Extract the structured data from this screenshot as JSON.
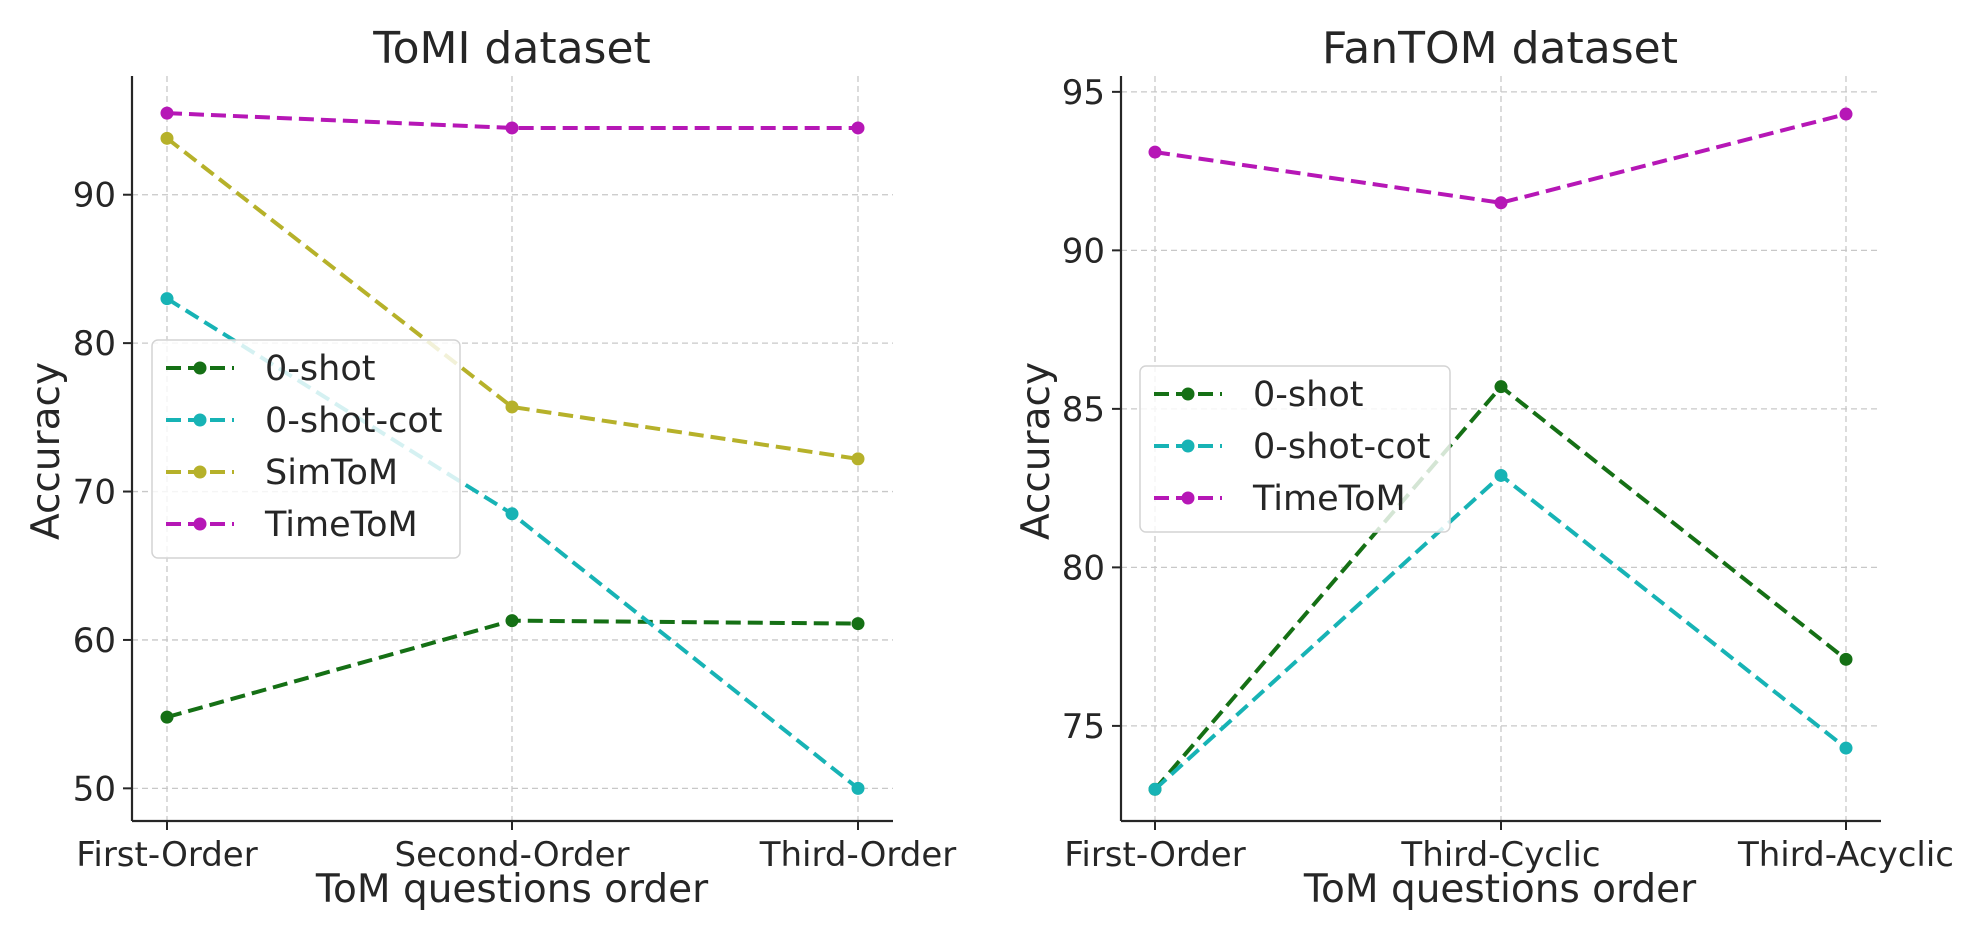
{
  "chart_data": [
    {
      "type": "line",
      "title": "ToMI dataset",
      "xlabel": "ToM questions order",
      "ylabel": "Accuracy",
      "categories": [
        "First-Order",
        "Second-Order",
        "Third-Order"
      ],
      "ylim": [
        47.8,
        98.0
      ],
      "yticks": [
        50,
        60,
        70,
        80,
        90
      ],
      "grid": true,
      "legend_position": "center-left",
      "series": [
        {
          "name": "0-shot",
          "color": "#157015",
          "values": [
            54.8,
            61.3,
            61.1
          ]
        },
        {
          "name": "0-shot-cot",
          "color": "#17b3b5",
          "values": [
            83.0,
            68.5,
            50.0
          ]
        },
        {
          "name": "SimToM",
          "color": "#b6b12a",
          "values": [
            93.8,
            75.7,
            72.2
          ]
        },
        {
          "name": "TimeToM",
          "color": "#b617b6",
          "values": [
            95.5,
            94.5,
            94.5
          ]
        }
      ]
    },
    {
      "type": "line",
      "title": "FanTOM dataset",
      "xlabel": "ToM questions order",
      "ylabel": "Accuracy",
      "categories": [
        "First-Order",
        "Third-Cyclic",
        "Third-Acyclic"
      ],
      "ylim": [
        72.0,
        95.5
      ],
      "yticks": [
        75,
        80,
        85,
        90,
        95
      ],
      "grid": true,
      "legend_position": "center-left",
      "series": [
        {
          "name": "0-shot",
          "color": "#157015",
          "values": [
            73.0,
            85.7,
            77.1
          ]
        },
        {
          "name": "0-shot-cot",
          "color": "#17b3b5",
          "values": [
            73.0,
            82.9,
            74.3
          ]
        },
        {
          "name": "TimeToM",
          "color": "#b617b6",
          "values": [
            93.1,
            91.5,
            94.3
          ]
        }
      ]
    }
  ]
}
